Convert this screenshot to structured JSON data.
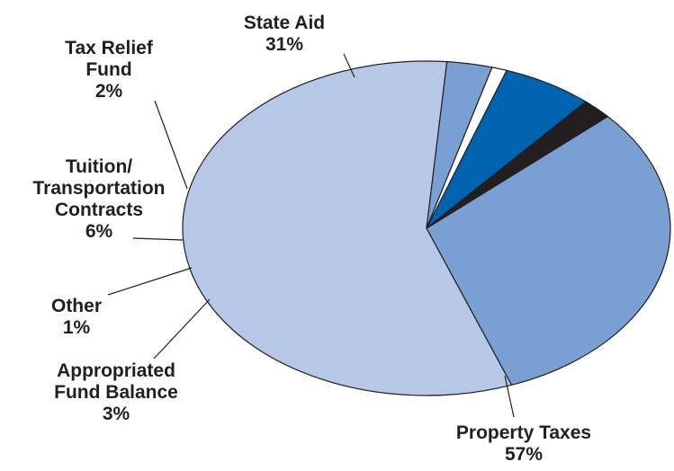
{
  "chart_data": {
    "type": "pie",
    "title": "",
    "legend": "none",
    "slices": [
      {
        "label_lines": [
          "State Aid",
          "31%"
        ],
        "value": 31,
        "color": "#7aa0d3"
      },
      {
        "label_lines": [
          "Property Taxes",
          "57%"
        ],
        "value": 57,
        "color": "#b7c8e6"
      },
      {
        "label_lines": [
          "Appropriated",
          "Fund Balance",
          "3%"
        ],
        "value": 3,
        "color": "#7aa0d3"
      },
      {
        "label_lines": [
          "Other",
          "1%"
        ],
        "value": 1,
        "color": "#ffffff"
      },
      {
        "label_lines": [
          "Tuition/",
          "Transportation",
          "Contracts",
          "6%"
        ],
        "value": 6,
        "color": "#0063b0"
      },
      {
        "label_lines": [
          "Tax Relief",
          "Fund",
          "2%"
        ],
        "value": 2,
        "color": "#231f20"
      }
    ]
  }
}
